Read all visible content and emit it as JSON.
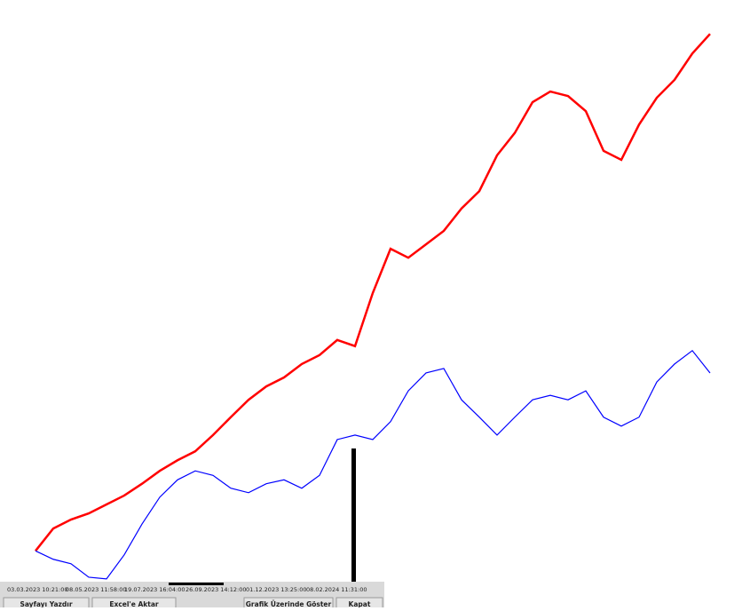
{
  "chart_data": {
    "type": "line",
    "x_labels": [
      "03.03.2023 10:21:00",
      "08.05.2023 11:58:00",
      "19.07.2023 16:04:00",
      "26.09.2023 14:12:00",
      "01.12.2023 13:25:00",
      "08.02.2024 11:31:00"
    ],
    "ylim": [
      0,
      100
    ],
    "series": [
      {
        "color": "#ff0000",
        "values": [
          6.3,
          10.3,
          11.9,
          13.0,
          14.6,
          16.2,
          18.3,
          20.6,
          22.5,
          24.1,
          27.0,
          30.2,
          33.3,
          35.7,
          37.3,
          39.7,
          41.3,
          44.0,
          42.9,
          52.4,
          60.3,
          58.7,
          61.1,
          63.5,
          67.5,
          70.6,
          77.0,
          81.0,
          86.5,
          88.4,
          87.6,
          84.9,
          77.8,
          76.2,
          82.5,
          87.3,
          90.5,
          95.2,
          98.7
        ]
      },
      {
        "color": "#0000ff",
        "values": [
          6.3,
          4.8,
          4.0,
          1.6,
          1.3,
          5.6,
          11.1,
          15.9,
          19.0,
          20.6,
          19.8,
          17.5,
          16.7,
          18.3,
          19.0,
          17.5,
          19.8,
          26.2,
          27.0,
          26.2,
          29.4,
          34.9,
          38.1,
          38.9,
          33.3,
          30.2,
          27.0,
          30.2,
          33.3,
          34.1,
          33.3,
          34.9,
          30.2,
          28.6,
          30.2,
          36.5,
          39.7,
          42.1,
          38.1
        ]
      }
    ]
  },
  "buttons": [
    "Sayfayı Yazdır",
    "Excel'e Aktar",
    "Grafik Üzerinde Göster",
    "Kapat"
  ]
}
